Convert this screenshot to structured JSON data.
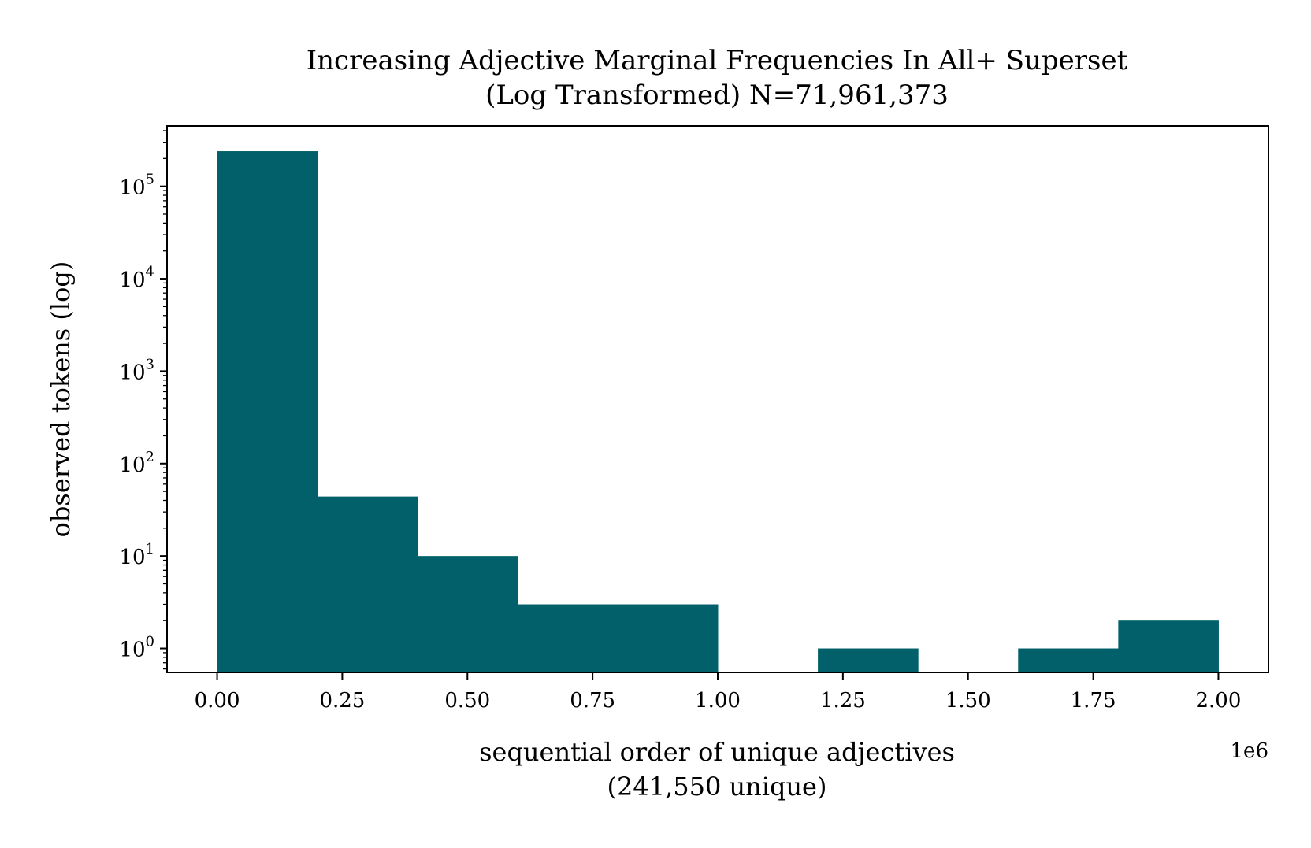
{
  "chart_data": {
    "type": "bar",
    "title": "Increasing Adjective Marginal Frequencies In All+ Superset",
    "subtitle": "(Log Transformed) N=71,961,373",
    "xlabel": "sequential order of unique adjectives",
    "xlabel_line2": "(241,550 unique)",
    "ylabel": "observed tokens (log)",
    "x_offset_label": "1e6",
    "x_scale_factor": 1000000,
    "xlim": [
      -0.1,
      2.1
    ],
    "ylim": [
      0.55,
      450000
    ],
    "yscale": "log",
    "x_ticks": [
      0.0,
      0.25,
      0.5,
      0.75,
      1.0,
      1.25,
      1.5,
      1.75,
      2.0
    ],
    "x_tick_labels": [
      "0.00",
      "0.25",
      "0.50",
      "0.75",
      "1.00",
      "1.25",
      "1.50",
      "1.75",
      "2.00"
    ],
    "y_ticks": [
      {
        "value": 1,
        "base": "10",
        "exp": "0"
      },
      {
        "value": 10,
        "base": "10",
        "exp": "1"
      },
      {
        "value": 100,
        "base": "10",
        "exp": "2"
      },
      {
        "value": 1000,
        "base": "10",
        "exp": "3"
      },
      {
        "value": 10000,
        "base": "10",
        "exp": "4"
      },
      {
        "value": 100000,
        "base": "10",
        "exp": "5"
      }
    ],
    "bin_edges": [
      0.0,
      0.2,
      0.4,
      0.6,
      0.8,
      1.0,
      1.2,
      1.4,
      1.6,
      1.8,
      2.0
    ],
    "values": [
      240000,
      44,
      10,
      3,
      3,
      0,
      1,
      0,
      1,
      2
    ],
    "bar_color": "#02606a",
    "grid": false,
    "legend": "none"
  }
}
